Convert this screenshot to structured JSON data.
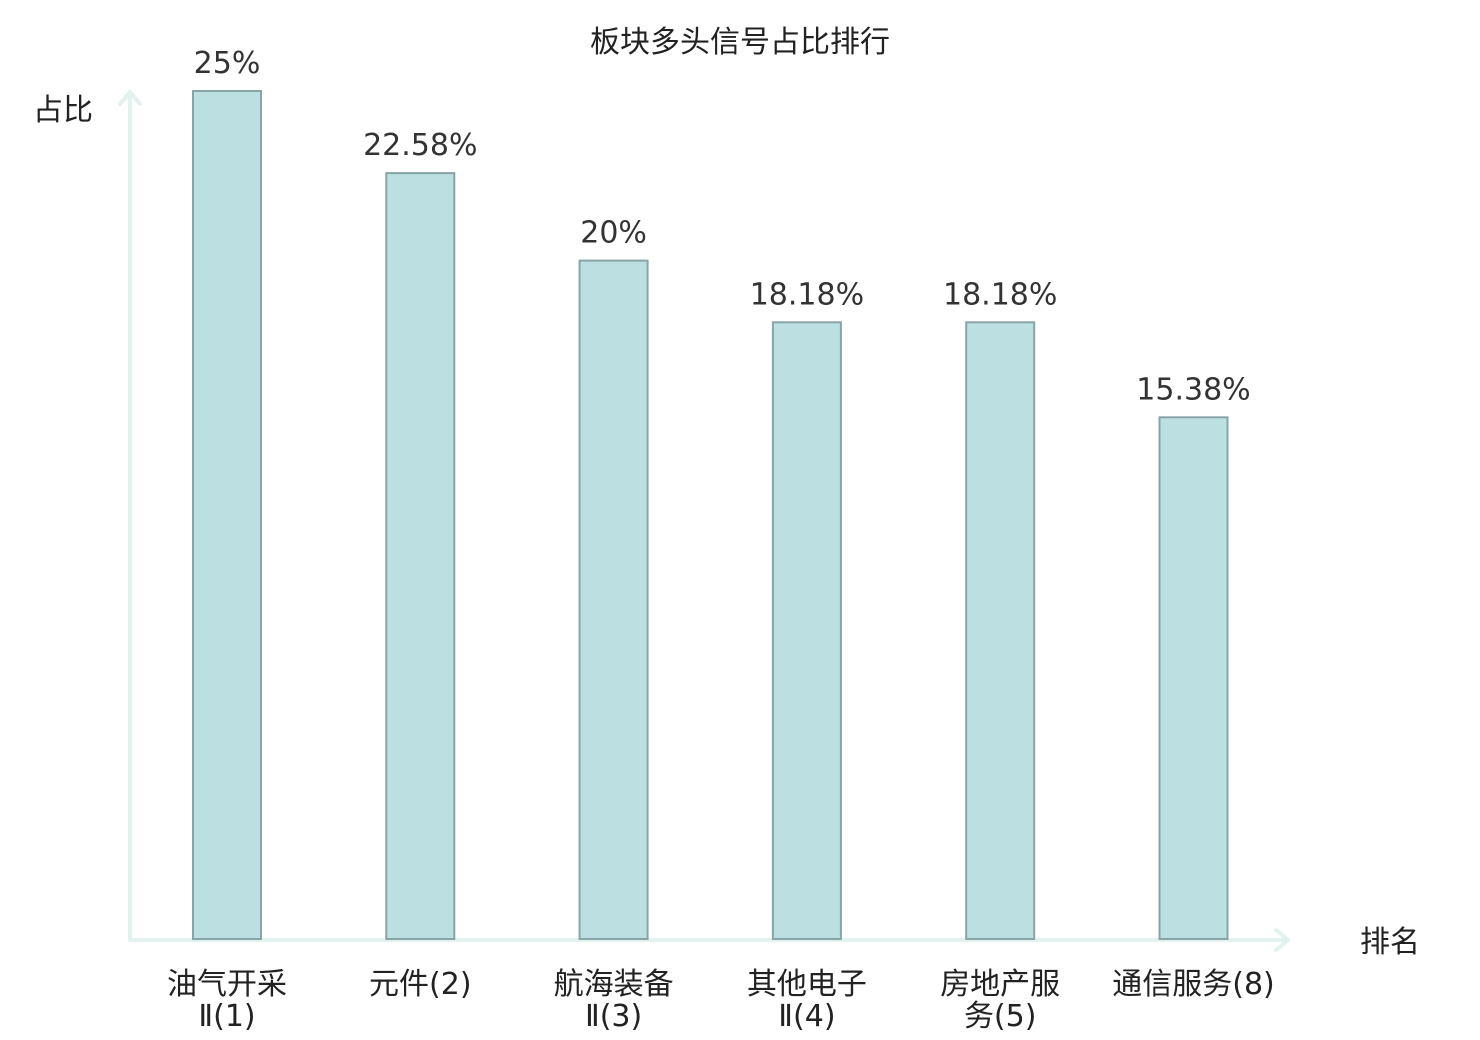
{
  "chart_data": {
    "type": "bar",
    "title": "板块多头信号占比排行",
    "xlabel": "排名",
    "ylabel": "占比",
    "ylim": [
      0,
      25
    ],
    "grid": false,
    "categories": [
      [
        "油气开采",
        "Ⅱ(1)"
      ],
      [
        "元件(2)"
      ],
      [
        "航海装备",
        "Ⅱ(3)"
      ],
      [
        "其他电子",
        "Ⅱ(4)"
      ],
      [
        "房地产服",
        "务(5)"
      ],
      [
        "通信服务(8)"
      ]
    ],
    "values": [
      25,
      22.58,
      20,
      18.18,
      18.18,
      15.38
    ],
    "value_labels": [
      "25%",
      "22.58%",
      "20%",
      "18.18%",
      "18.18%",
      "15.38%"
    ],
    "highlight_index": 5,
    "colors": {
      "bar_fill": "#bce0e2",
      "bar_stroke": "#88a4a8",
      "axis": "#e2f2ef",
      "text": "#222222",
      "highlight_text": "#dd1111"
    }
  }
}
